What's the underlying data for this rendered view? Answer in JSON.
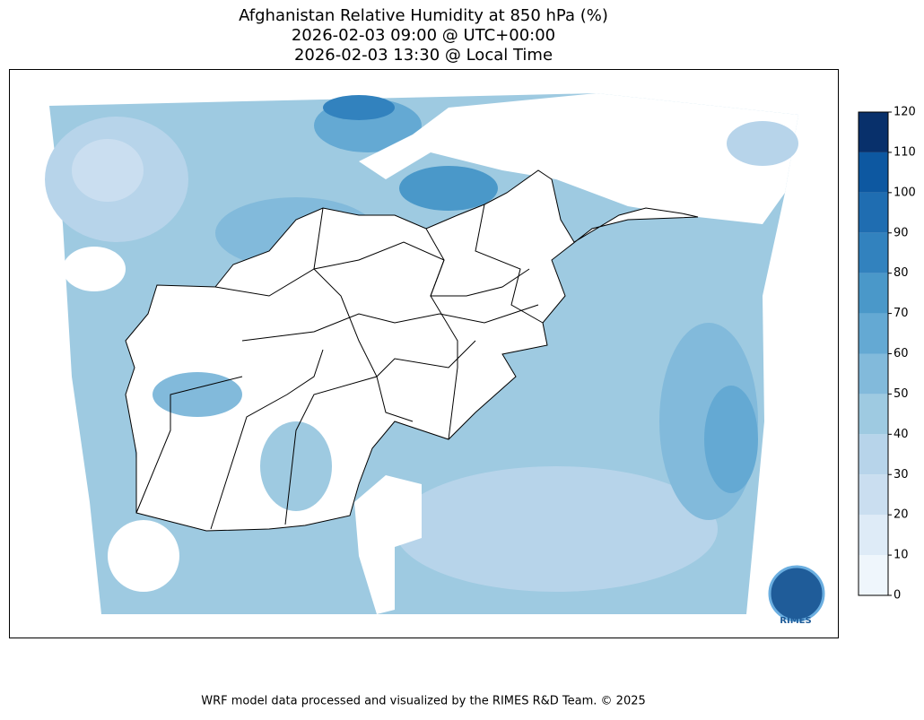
{
  "header": {
    "title": [
      "Afghanistan Relative Humidity at 850 hPa (%)",
      "2026-02-03 09:00 @ UTC+00:00",
      "2026-02-03 13:30 @ Local Time"
    ]
  },
  "colorbar": {
    "lim": [
      0,
      120
    ],
    "ticks": [
      0,
      10,
      20,
      30,
      40,
      50,
      60,
      70,
      80,
      90,
      100,
      110,
      120
    ],
    "colors": [
      "#eff6fc",
      "#deebf7",
      "#cadef0",
      "#b7d4ea",
      "#9ecae1",
      "#82badb",
      "#64a9d3",
      "#4a98c9",
      "#3282be",
      "#1f6db1",
      "#0d58a1",
      "#08306b"
    ]
  },
  "logo": {
    "text": "RIMES"
  },
  "footer": "WRF model data processed and visualized by the RIMES R&D Team. © 2025"
}
